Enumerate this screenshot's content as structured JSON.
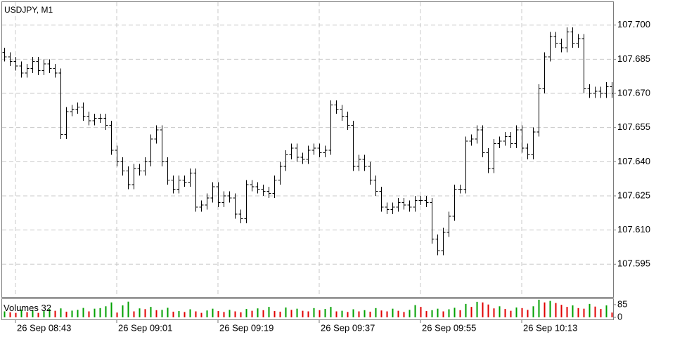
{
  "chart_data": {
    "type": "ohlc",
    "title": "USDJPY, M1",
    "volume_label": "Volumes",
    "bar_color": "#000000",
    "volume_up_color": "#00a000",
    "volume_down_color": "#e00000",
    "grid": true,
    "ylim": [
      107.5806,
      107.7104
    ],
    "yticks": [
      {
        "value": 107.7,
        "label": "107.700"
      },
      107.685,
      {
        "value": 107.67,
        "label": "107.670"
      },
      107.655,
      {
        "value": 107.64,
        "label": "107.640"
      },
      107.625,
      {
        "value": 107.61,
        "label": "107.610"
      },
      107.595
    ],
    "volume_ylim": [
      0,
      127
    ],
    "volume_ticks": [
      85,
      0
    ],
    "categories": [
      null,
      null,
      "26 Sep 08:43",
      null,
      null,
      null,
      null,
      null,
      null,
      null,
      null,
      null,
      null,
      null,
      null,
      null,
      null,
      null,
      null,
      null,
      "26 Sep 09:01",
      null,
      null,
      null,
      null,
      null,
      null,
      null,
      null,
      null,
      null,
      null,
      null,
      null,
      null,
      null,
      null,
      null,
      "26 Sep 09:19",
      null,
      null,
      null,
      null,
      null,
      null,
      null,
      null,
      null,
      null,
      null,
      null,
      null,
      null,
      null,
      null,
      null,
      "26 Sep 09:37",
      null,
      null,
      null,
      null,
      null,
      null,
      null,
      null,
      null,
      null,
      null,
      null,
      null,
      null,
      null,
      null,
      null,
      "26 Sep 09:55",
      null,
      null,
      null,
      null,
      null,
      null,
      null,
      null,
      null,
      null,
      null,
      null,
      null,
      null,
      null,
      null,
      null,
      "26 Sep 10:13",
      null,
      null,
      null,
      null,
      null,
      null,
      null,
      null,
      null,
      null,
      null,
      null,
      null,
      null,
      null,
      null
    ],
    "open": [
      107.688,
      107.686,
      107.684,
      107.682,
      107.679,
      107.681,
      107.684,
      107.68,
      107.683,
      107.681,
      107.679,
      107.652,
      107.662,
      107.663,
      107.664,
      107.66,
      107.658,
      107.659,
      107.659,
      107.656,
      107.645,
      107.64,
      107.636,
      107.63,
      107.637,
      107.636,
      107.64,
      107.65,
      107.654,
      107.64,
      107.632,
      107.628,
      107.632,
      107.631,
      107.635,
      107.62,
      107.621,
      107.624,
      107.629,
      107.622,
      107.625,
      107.624,
      107.617,
      107.615,
      107.63,
      107.629,
      107.628,
      107.627,
      107.626,
      107.632,
      107.638,
      107.643,
      107.646,
      107.642,
      107.641,
      107.645,
      107.646,
      107.644,
      107.645,
      107.665,
      107.663,
      107.66,
      107.656,
      107.638,
      107.641,
      107.638,
      107.632,
      107.627,
      107.62,
      107.619,
      107.62,
      107.622,
      107.621,
      107.62,
      107.623,
      107.623,
      107.622,
      107.606,
      107.601,
      107.609,
      107.616,
      107.628,
      107.628,
      107.649,
      107.65,
      107.654,
      107.644,
      107.637,
      107.648,
      107.649,
      107.651,
      107.648,
      107.654,
      107.646,
      107.643,
      107.653,
      107.672,
      107.686,
      107.695,
      107.692,
      107.69,
      107.697,
      107.692,
      107.694,
      107.672,
      107.67,
      107.671,
      107.67,
      107.673
    ],
    "high": [
      107.69,
      107.688,
      107.686,
      107.684,
      107.683,
      107.686,
      107.686,
      107.685,
      107.685,
      107.683,
      107.681,
      107.664,
      107.665,
      107.666,
      107.666,
      107.662,
      107.661,
      107.661,
      107.661,
      107.658,
      107.647,
      107.642,
      107.638,
      107.639,
      107.639,
      107.642,
      107.652,
      107.656,
      107.656,
      107.642,
      107.634,
      107.634,
      107.634,
      107.637,
      107.637,
      107.623,
      107.626,
      107.631,
      107.631,
      107.627,
      107.627,
      107.626,
      107.619,
      107.632,
      107.632,
      107.631,
      107.63,
      107.629,
      107.634,
      107.64,
      107.645,
      107.648,
      107.648,
      107.644,
      107.647,
      107.648,
      107.648,
      107.647,
      107.667,
      107.667,
      107.665,
      107.662,
      107.658,
      107.643,
      107.643,
      107.64,
      107.634,
      107.629,
      107.622,
      107.622,
      107.624,
      107.624,
      107.623,
      107.625,
      107.625,
      107.625,
      107.624,
      107.608,
      107.611,
      107.618,
      107.63,
      107.63,
      107.651,
      107.652,
      107.656,
      107.656,
      107.646,
      107.65,
      107.651,
      107.653,
      107.653,
      107.656,
      107.656,
      107.648,
      107.655,
      107.674,
      107.688,
      107.697,
      107.697,
      107.694,
      107.699,
      107.699,
      107.696,
      107.696,
      107.674,
      107.673,
      107.673,
      107.675,
      107.675
    ],
    "low": [
      107.684,
      107.682,
      107.68,
      107.677,
      107.677,
      107.679,
      107.678,
      107.678,
      107.679,
      107.677,
      107.65,
      107.65,
      107.66,
      107.661,
      107.658,
      107.656,
      107.656,
      107.657,
      107.654,
      107.643,
      107.638,
      107.634,
      107.628,
      107.628,
      107.634,
      107.634,
      107.638,
      107.648,
      107.638,
      107.63,
      107.626,
      107.626,
      107.629,
      107.629,
      107.618,
      107.618,
      107.619,
      107.622,
      107.62,
      107.62,
      107.622,
      107.615,
      107.613,
      107.613,
      107.627,
      107.626,
      107.625,
      107.624,
      107.624,
      107.63,
      107.636,
      107.641,
      107.64,
      107.639,
      107.639,
      107.643,
      107.642,
      107.642,
      107.643,
      107.661,
      107.658,
      107.654,
      107.636,
      107.636,
      107.636,
      107.63,
      107.625,
      107.618,
      107.617,
      107.617,
      107.618,
      107.619,
      107.618,
      107.618,
      107.621,
      107.62,
      107.604,
      107.599,
      107.599,
      107.607,
      107.614,
      107.626,
      107.626,
      107.647,
      107.648,
      107.642,
      107.635,
      107.635,
      107.646,
      107.647,
      107.646,
      107.646,
      107.644,
      107.641,
      107.641,
      107.651,
      107.67,
      107.684,
      107.69,
      107.688,
      107.688,
      107.69,
      107.69,
      107.67,
      107.668,
      107.668,
      107.668,
      107.668,
      107.668
    ],
    "close": [
      107.686,
      107.684,
      107.682,
      107.679,
      107.681,
      107.684,
      107.68,
      107.683,
      107.681,
      107.679,
      107.652,
      107.662,
      107.663,
      107.664,
      107.66,
      107.658,
      107.659,
      107.659,
      107.656,
      107.645,
      107.64,
      107.636,
      107.63,
      107.637,
      107.636,
      107.64,
      107.65,
      107.654,
      107.64,
      107.632,
      107.628,
      107.632,
      107.631,
      107.635,
      107.62,
      107.621,
      107.624,
      107.629,
      107.622,
      107.625,
      107.624,
      107.617,
      107.615,
      107.63,
      107.629,
      107.628,
      107.627,
      107.626,
      107.632,
      107.638,
      107.643,
      107.646,
      107.642,
      107.641,
      107.645,
      107.646,
      107.644,
      107.645,
      107.665,
      107.663,
      107.66,
      107.656,
      107.638,
      107.641,
      107.638,
      107.632,
      107.627,
      107.62,
      107.619,
      107.62,
      107.622,
      107.621,
      107.62,
      107.623,
      107.623,
      107.622,
      107.606,
      107.601,
      107.609,
      107.616,
      107.628,
      107.628,
      107.649,
      107.65,
      107.654,
      107.644,
      107.637,
      107.648,
      107.649,
      107.651,
      107.648,
      107.654,
      107.646,
      107.643,
      107.653,
      107.672,
      107.686,
      107.695,
      107.692,
      107.69,
      107.697,
      107.692,
      107.694,
      107.672,
      107.67,
      107.671,
      107.67,
      107.673,
      107.67
    ],
    "volume": [
      40,
      34,
      30,
      52,
      35,
      48,
      30,
      42,
      56,
      44,
      60,
      38,
      45,
      50,
      63,
      40,
      58,
      62,
      74,
      100,
      32,
      80,
      105,
      40,
      60,
      55,
      70,
      48,
      50,
      64,
      38,
      42,
      36,
      54,
      40,
      30,
      46,
      58,
      42,
      36,
      50,
      40,
      34,
      56,
      44,
      60,
      48,
      70,
      42,
      38,
      66,
      50,
      58,
      44,
      40,
      62,
      48,
      56,
      70,
      40,
      44,
      36,
      54,
      40,
      48,
      38,
      62,
      46,
      40,
      58,
      44,
      36,
      50,
      82,
      70,
      42,
      48,
      58,
      40,
      54,
      64,
      48,
      90,
      70,
      104,
      100,
      86,
      60,
      74,
      56,
      44,
      66,
      62,
      50,
      74,
      118,
      100,
      110,
      96,
      84,
      70,
      80,
      62,
      58,
      90,
      72,
      56,
      80,
      32
    ]
  }
}
